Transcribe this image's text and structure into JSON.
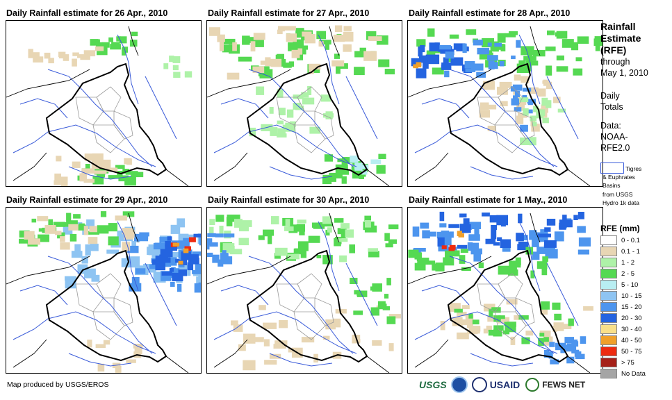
{
  "panels": [
    {
      "title": "Daily Rainfall estimate for 26 Apr., 2010"
    },
    {
      "title": "Daily Rainfall estimate for 27 Apr., 2010"
    },
    {
      "title": "Daily Rainfall estimate for 28 Apr., 2010"
    },
    {
      "title": "Daily Rainfall estimate for 29 Apr., 2010"
    },
    {
      "title": "Daily Rainfall estimate for 30 Apr., 2010"
    },
    {
      "title": "Daily Rainfall estimate for 1 May., 2010"
    }
  ],
  "sidebar": {
    "title_line1": "Rainfall",
    "title_line2": "Estimate",
    "title_line3": "(RFE)",
    "through": "through",
    "date": "May 1, 2010",
    "daily": "Daily",
    "totals": "Totals",
    "data_label": "Data:",
    "data_src1": "NOAA-",
    "data_src2": "RFE2.0"
  },
  "basin_legend": {
    "line1": "Tigres",
    "line2": "& Euphrates",
    "line3": "Basins",
    "line4": "from USGS",
    "line5": "Hydro 1k data"
  },
  "legend": {
    "title": "RFE (mm)",
    "classes": [
      {
        "label": "0 - 0.1",
        "color": "#ffffff"
      },
      {
        "label": "0.1 - 1",
        "color": "#e8d6b4"
      },
      {
        "label": "1 - 2",
        "color": "#aef2a8"
      },
      {
        "label": "2 - 5",
        "color": "#55d952"
      },
      {
        "label": "5 - 10",
        "color": "#b8eef2"
      },
      {
        "label": "10 - 15",
        "color": "#8ec4f2"
      },
      {
        "label": "15 - 20",
        "color": "#4d95ee"
      },
      {
        "label": "20 - 30",
        "color": "#2464e0"
      },
      {
        "label": "30 - 40",
        "color": "#f9e08a"
      },
      {
        "label": "40 - 50",
        "color": "#f0a02a"
      },
      {
        "label": "50 - 75",
        "color": "#ee2b10"
      },
      {
        "label": "> 75",
        "color": "#a52018"
      },
      {
        "label": "No Data",
        "color": "#a5a5a5"
      }
    ]
  },
  "footer": {
    "credit": "Map produced by USGS/EROS"
  },
  "logos": {
    "usgs": "USGS",
    "usaid": "USAID",
    "fews": "FEWS NET"
  }
}
